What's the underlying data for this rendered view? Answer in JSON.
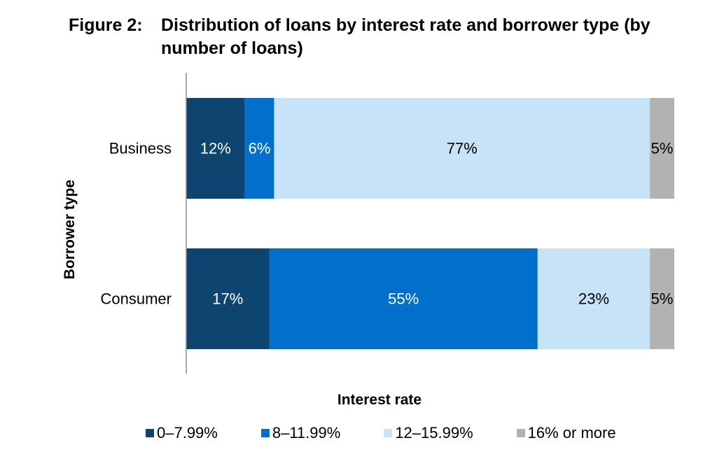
{
  "figure": {
    "label": "Figure 2:",
    "title": "Distribution of loans by interest rate and borrower type (by number of loans)"
  },
  "chart_data": {
    "type": "bar",
    "orientation": "horizontal",
    "stacked": true,
    "categories": [
      "Business",
      "Consumer"
    ],
    "series": [
      {
        "name": "0–7.99%",
        "color": "#0e4470",
        "values": [
          12,
          17
        ],
        "labels": [
          "12%",
          "17%"
        ],
        "label_color": "#ffffff"
      },
      {
        "name": "8–11.99%",
        "color": "#0070cc",
        "values": [
          6,
          55
        ],
        "labels": [
          "6%",
          "55%"
        ],
        "label_color": "#ffffff"
      },
      {
        "name": "12–15.99%",
        "color": "#c6e3f7",
        "values": [
          77,
          23
        ],
        "labels": [
          "77%",
          "23%"
        ],
        "label_color": "#000000"
      },
      {
        "name": "16% or more",
        "color": "#b2b2b2",
        "values": [
          5,
          5
        ],
        "labels": [
          "5%",
          "5%"
        ],
        "label_color": "#000000"
      }
    ],
    "xlabel": "Interest rate",
    "ylabel": "Borrower type",
    "xlim": [
      0,
      100
    ],
    "grid": false,
    "legend_position": "bottom"
  }
}
